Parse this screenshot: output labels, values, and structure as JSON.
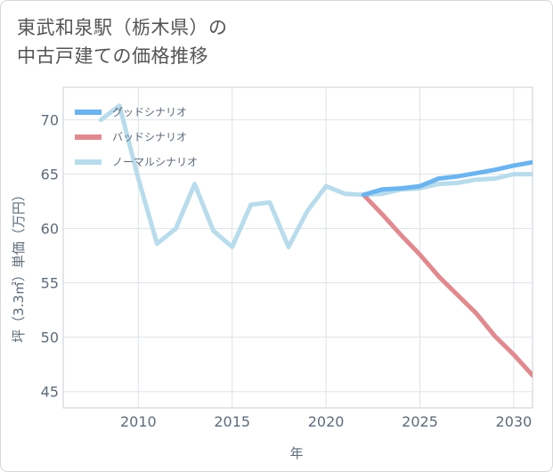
{
  "title_lines": [
    "東武和泉駅（栃木県）の",
    "中古戸建ての価格推移"
  ],
  "chart_data": {
    "type": "line",
    "title": "東武和泉駅（栃木県）の中古戸建ての価格推移",
    "xlabel": "年",
    "ylabel": "坪（3.3㎡）単価（万円）",
    "xlim": [
      2006,
      2031
    ],
    "ylim": [
      43.5,
      73
    ],
    "xticks": [
      2010,
      2015,
      2020,
      2025,
      2030
    ],
    "yticks": [
      45,
      50,
      55,
      60,
      65,
      70
    ],
    "grid": true,
    "legend_position": "top-left",
    "series": [
      {
        "name": "グッドシナリオ",
        "color": "#6cb4ee",
        "x": [
          2022,
          2023,
          2024,
          2025,
          2026,
          2027,
          2028,
          2029,
          2030,
          2031
        ],
        "values": [
          63.1,
          63.6,
          63.7,
          63.9,
          64.6,
          64.8,
          65.1,
          65.4,
          65.8,
          66.1
        ]
      },
      {
        "name": "バッドシナリオ",
        "color": "#e08a90",
        "x": [
          2022,
          2023,
          2024,
          2025,
          2026,
          2027,
          2028,
          2029,
          2030,
          2031
        ],
        "values": [
          63.1,
          61.3,
          59.4,
          57.6,
          55.6,
          53.9,
          52.2,
          50.1,
          48.4,
          46.5
        ]
      },
      {
        "name": "ノーマルシナリオ",
        "color": "#b8dcec",
        "x": [
          2008,
          2009,
          2010,
          2011,
          2012,
          2013,
          2014,
          2015,
          2016,
          2017,
          2018,
          2019,
          2020,
          2021,
          2022,
          2023,
          2024,
          2025,
          2026,
          2027,
          2028,
          2029,
          2030,
          2031
        ],
        "values": [
          70.0,
          71.3,
          64.6,
          58.6,
          60.0,
          64.1,
          59.8,
          58.3,
          62.2,
          62.4,
          58.3,
          61.6,
          63.9,
          63.2,
          63.1,
          63.2,
          63.6,
          63.7,
          64.1,
          64.2,
          64.5,
          64.6,
          65.0,
          65.0
        ]
      }
    ]
  }
}
